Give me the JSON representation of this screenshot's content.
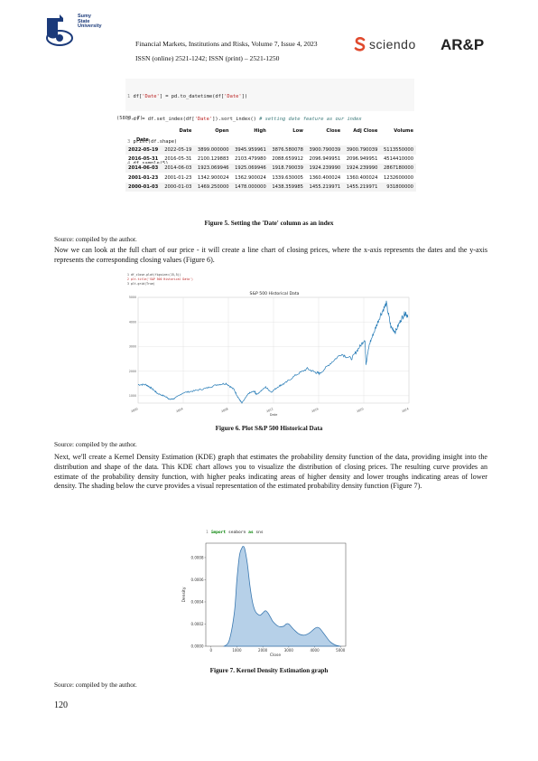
{
  "header": {
    "university_lines": [
      "Sumy",
      "State",
      "University"
    ],
    "journal": "Financial Markets, Institutions and Risks, Volume 7, Issue 4, 2023",
    "issn": "ISSN (online) 2521-1242; ISSN (print) – 2521-1250",
    "publisher": "sciendo",
    "publisher_logo_icon": "sciendo-s-icon",
    "brand": "AR&P",
    "accent_color": "#1b3a7a",
    "sciendo_color": "#e04a2e"
  },
  "code1": {
    "lines": [
      {
        "n": "1",
        "pre": "df[",
        "s1": "'Date'",
        "mid": "] = pd.to_datetime(df[",
        "s2": "'Date'",
        "post": "])",
        "comment": ""
      },
      {
        "n": "2",
        "pre": "df = df.set_index(df[",
        "s1": "'Date'",
        "mid": "]).sort_index() ",
        "s2": "",
        "post": "",
        "comment": "# setting date feature as our index"
      },
      {
        "n": "3",
        "pre": "print(df.shape)",
        "s1": "",
        "mid": "",
        "s2": "",
        "post": "",
        "comment": ""
      },
      {
        "n": "4",
        "pre": "df.sample(5)",
        "s1": "",
        "mid": "",
        "s2": "",
        "post": "",
        "comment": ""
      }
    ],
    "shape_output": "(5800, 7)"
  },
  "dataframe": {
    "columns": [
      "Date",
      "Open",
      "High",
      "Low",
      "Close",
      "Adj Close",
      "Volume"
    ],
    "index_name": "Date",
    "rows": [
      [
        "2022-05-19",
        "2022-05-19",
        "3899.000000",
        "3945.959961",
        "3876.580078",
        "3900.790039",
        "3900.790039",
        "5113550000"
      ],
      [
        "2016-05-31",
        "2016-05-31",
        "2100.129883",
        "2103.479980",
        "2088.659912",
        "2096.949951",
        "2096.949951",
        "4514410000"
      ],
      [
        "2014-06-03",
        "2014-06-03",
        "1923.069946",
        "1925.069946",
        "1918.790039",
        "1924.239990",
        "1924.239990",
        "2867180000"
      ],
      [
        "2001-01-23",
        "2001-01-23",
        "1342.900024",
        "1362.900024",
        "1339.630005",
        "1360.400024",
        "1360.400024",
        "1232600000"
      ],
      [
        "2000-01-03",
        "2000-01-03",
        "1469.250000",
        "1478.000000",
        "1438.359985",
        "1455.219971",
        "1455.219971",
        "931800000"
      ]
    ]
  },
  "fig5": {
    "caption": "Figure 5. Setting the 'Date' column as an index",
    "source": "Source: compiled by the author."
  },
  "para1": "Now we can look at the full chart of our price - it will create a line chart of closing prices, where the x-axis represents the dates and the y-axis represents the corresponding closing values (Figure 6).",
  "fig6": {
    "code_lines": [
      "1 df_close.plot(figsize=(15,5))",
      "2 plt.title('S&P 500 Historical Data')",
      "3 plt.grid(True)"
    ],
    "caption": "Figure 6. Plot S&P 500 Historical Data",
    "source": "Source: compiled by the author."
  },
  "para2": "Next, we'll create a Kernel Density Estimation (KDE) graph that estimates the probability density function of the data, providing insight into the distribution and shape of the data. This KDE chart allows you to visualize the distribution of closing prices. The resulting curve provides an estimate of the probability density function, with higher peaks indicating areas of higher density and lower troughs indicating areas of lower density. The shading below the curve provides a visual representation of the estimated probability density function (Figure 7).",
  "code2": {
    "lines": [
      {
        "n": "1",
        "kw": "import",
        "rest": " seaborn ",
        "kw2": "as",
        "rest2": " sns",
        "val": ""
      },
      {
        "n": "2",
        "kw": "",
        "rest": "sns.kdeplot(df_close, shade=",
        "kw2": "",
        "rest2": "",
        "val": "True)"
      },
      {
        "n": "3",
        "kw": "",
        "rest": "plt.show()",
        "kw2": "",
        "rest2": "",
        "val": ""
      }
    ]
  },
  "fig7": {
    "caption": "Figure 7. Kernel Density Estimation graph",
    "source": "Source: compiled by the author."
  },
  "page_number": "120",
  "chart_data": [
    {
      "type": "line",
      "title": "S&P 500 Historical Data",
      "xlabel": "Date",
      "ylabel": "",
      "x_ticks": [
        "2000",
        "2004",
        "2008",
        "2012",
        "2016",
        "2020",
        "2024"
      ],
      "y_ticks": [
        "1000",
        "2000",
        "3000",
        "4000",
        "5000"
      ],
      "xlim": [
        2000,
        2024
      ],
      "ylim": [
        700,
        5000
      ],
      "grid": true,
      "line_color": "#1f77b4",
      "x": [
        2000.0,
        2000.7,
        2001.2,
        2001.7,
        2002.5,
        2002.8,
        2003.2,
        2004.0,
        2005.0,
        2006.0,
        2007.0,
        2007.8,
        2008.5,
        2008.9,
        2009.2,
        2009.8,
        2010.3,
        2010.5,
        2011.3,
        2011.8,
        2012.5,
        2013.0,
        2014.0,
        2015.0,
        2015.7,
        2016.1,
        2017.0,
        2018.0,
        2018.9,
        2019.5,
        2020.1,
        2020.2,
        2020.5,
        2021.0,
        2021.5,
        2022.0,
        2022.4,
        2022.8,
        2023.3,
        2023.7,
        2023.9
      ],
      "y": [
        1450,
        1450,
        1300,
        1100,
        950,
        850,
        880,
        1120,
        1200,
        1300,
        1450,
        1500,
        1250,
        900,
        700,
        1100,
        1180,
        1050,
        1350,
        1150,
        1400,
        1500,
        1850,
        2100,
        1950,
        1900,
        2300,
        2700,
        2500,
        2900,
        3300,
        2300,
        3100,
        3700,
        4300,
        4750,
        3800,
        3600,
        4100,
        4400,
        4200
      ]
    },
    {
      "type": "area",
      "title": "",
      "xlabel": "Close",
      "ylabel": "Density",
      "x_ticks": [
        "0",
        "1000",
        "2000",
        "3000",
        "4000",
        "5000"
      ],
      "y_ticks": [
        "0.0000",
        "0.0002",
        "0.0004",
        "0.0006",
        "0.0008"
      ],
      "xlim": [
        -200,
        5200
      ],
      "ylim": [
        0,
        0.00093
      ],
      "fill_color": "#a9c8e4",
      "line_color": "#3a78b0",
      "x": [
        500,
        700,
        900,
        1000,
        1100,
        1200,
        1250,
        1300,
        1400,
        1500,
        1600,
        1700,
        1800,
        1900,
        2000,
        2100,
        2200,
        2300,
        2400,
        2600,
        2800,
        2900,
        3000,
        3200,
        3400,
        3600,
        3800,
        4000,
        4100,
        4200,
        4400,
        4600,
        4800,
        5000
      ],
      "y": [
        0.0,
        5e-05,
        0.0003,
        0.0006,
        0.00082,
        0.00089,
        0.0009,
        0.00088,
        0.00075,
        0.00055,
        0.0004,
        0.00032,
        0.00029,
        0.00028,
        0.0003,
        0.00032,
        0.0003,
        0.00026,
        0.00022,
        0.00018,
        0.00018,
        0.0002,
        0.0002,
        0.00015,
        0.00011,
        0.0001,
        0.00012,
        0.00016,
        0.00017,
        0.00016,
        0.0001,
        4e-05,
        1e-05,
        0.0
      ]
    }
  ]
}
